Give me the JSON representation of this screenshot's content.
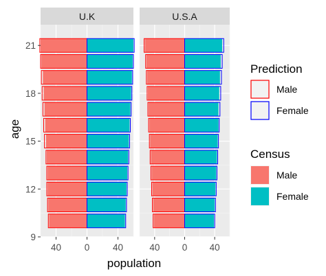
{
  "chart_data": {
    "type": "bar",
    "orientation": "horizontal",
    "xlabel": "population",
    "ylabel": "age",
    "ages": [
      10,
      11,
      12,
      13,
      14,
      15,
      16,
      17,
      18,
      19,
      20,
      21
    ],
    "y_ticks": [
      9,
      12,
      15,
      18,
      21
    ],
    "x_ticks": [
      -40,
      0,
      40
    ],
    "x_tick_labels": [
      "40",
      "0",
      "40"
    ],
    "xlim": [
      -60,
      60
    ],
    "grid": true,
    "legend_position": "right",
    "panels": [
      {
        "label": "U.K",
        "census_male": [
          49,
          50,
          51,
          51,
          52,
          53,
          54,
          55,
          56,
          57,
          59,
          60
        ],
        "census_female": [
          49,
          50,
          51,
          52,
          53,
          54,
          55,
          56,
          57,
          58,
          59,
          60
        ],
        "prediction_male": [
          50,
          51,
          52,
          52,
          53,
          55,
          56,
          57,
          58,
          59,
          60,
          61
        ],
        "prediction_female": [
          50,
          51,
          52,
          53,
          54,
          55,
          56,
          57,
          58,
          59,
          60,
          61
        ]
      },
      {
        "label": "U.S.A",
        "census_male": [
          41,
          42,
          43,
          44,
          45,
          46,
          47,
          48,
          49,
          50,
          51,
          53
        ],
        "census_female": [
          39,
          40,
          41,
          42,
          43,
          44,
          45,
          45,
          46,
          47,
          48,
          50
        ],
        "prediction_male": [
          42,
          43,
          44,
          45,
          46,
          47,
          48,
          49,
          50,
          51,
          52,
          54
        ],
        "prediction_female": [
          40,
          41,
          42,
          43,
          44,
          45,
          46,
          47,
          48,
          49,
          50,
          52
        ]
      }
    ],
    "legends": [
      {
        "title": "Prediction",
        "entries": [
          {
            "label": "Male",
            "fill": "#F2F2F2",
            "stroke": "#FF0000"
          },
          {
            "label": "Female",
            "fill": "#F2F2F2",
            "stroke": "#0000FF"
          }
        ]
      },
      {
        "title": "Census",
        "entries": [
          {
            "label": "Male",
            "fill": "#F8766D",
            "stroke": "none"
          },
          {
            "label": "Female",
            "fill": "#00BFC4",
            "stroke": "none"
          }
        ]
      }
    ],
    "colors": {
      "census_male": "#F8766D",
      "census_female": "#00BFC4",
      "prediction_male_outline": "#FF0000",
      "prediction_female_outline": "#0000FF",
      "panel_background": "#EBEBEB",
      "strip_background": "#D9D9D9"
    }
  }
}
